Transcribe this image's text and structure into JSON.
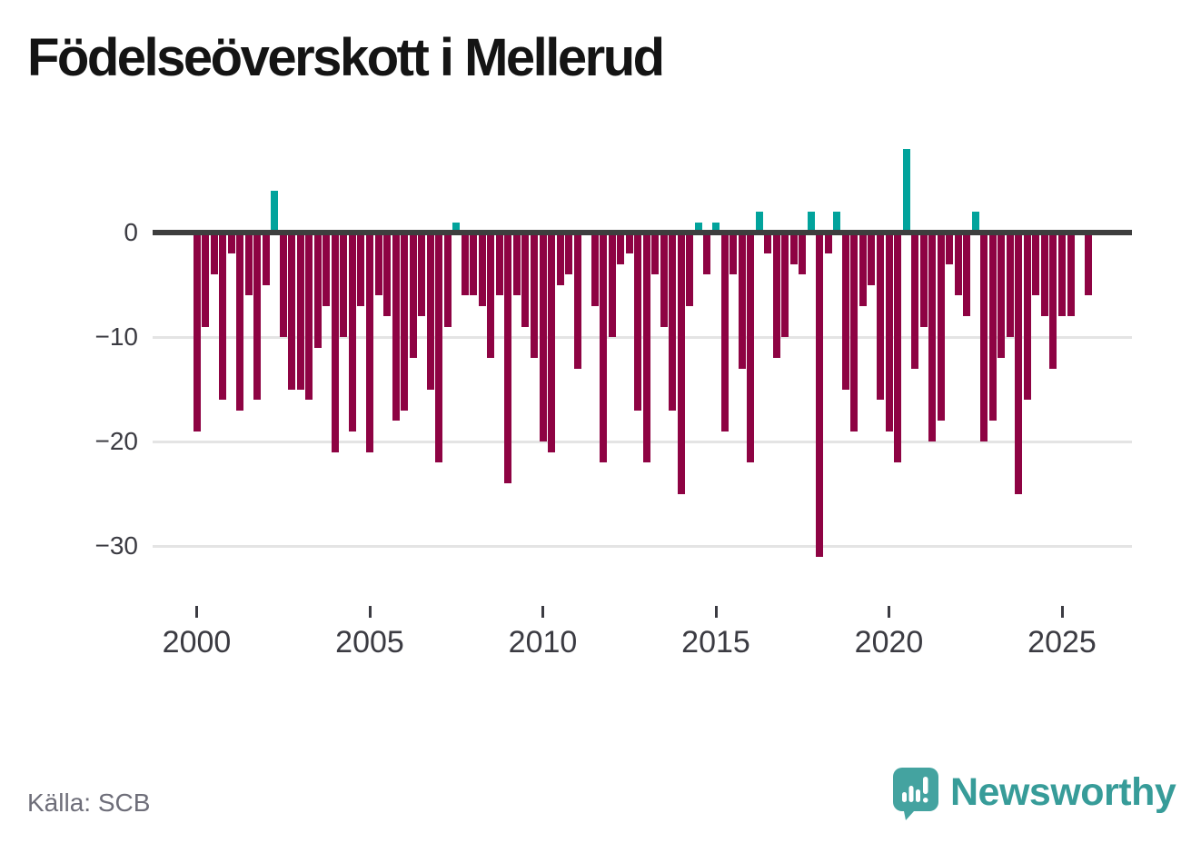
{
  "title": "Födelseöverskott i Mellerud",
  "source": "Källa: SCB",
  "brand": {
    "name": "Newsworthy"
  },
  "colors": {
    "title": "#141414",
    "axis_line": "#3e3e3e",
    "gridline": "#e4e4e4",
    "tick_label": "#3b3b42",
    "source_text": "#6e6e79",
    "brand_teal": "#379c99"
  },
  "chart_data": {
    "type": "bar",
    "title": "Födelseöverskott i Mellerud",
    "frequency": "quarterly",
    "start": "2000-Q1",
    "end": "2025-Q4",
    "positive_color": "#02a39c",
    "negative_color": "#8e0343",
    "ylim": [
      -33,
      9
    ],
    "yticks": [
      0,
      -10,
      -20,
      -30
    ],
    "xticks": [
      2000,
      2005,
      2010,
      2015,
      2020,
      2025
    ],
    "grid": "horizontal",
    "legend": "none",
    "values": [
      -19,
      -9,
      -4,
      -16,
      -2,
      -17,
      -6,
      -16,
      -5,
      4,
      -10,
      -15,
      -15,
      -16,
      -11,
      -7,
      -21,
      -10,
      -19,
      -7,
      -21,
      -6,
      -8,
      -18,
      -17,
      -12,
      -8,
      -15,
      -22,
      -9,
      1,
      -6,
      -6,
      -7,
      -12,
      -6,
      -24,
      -6,
      -9,
      -12,
      -20,
      -21,
      -5,
      -4,
      -13,
      0,
      -7,
      -22,
      -10,
      -3,
      -2,
      -17,
      -22,
      -4,
      -9,
      -17,
      -25,
      -7,
      1,
      -4,
      1,
      -19,
      -4,
      -13,
      -22,
      2,
      -2,
      -12,
      -10,
      -3,
      -4,
      2,
      -31,
      -2,
      2,
      -15,
      -19,
      -7,
      -5,
      -16,
      -19,
      -22,
      8,
      -13,
      -9,
      -20,
      -18,
      -3,
      -6,
      -8,
      2,
      -20,
      -18,
      -12,
      -10,
      -25,
      -16,
      -6,
      -8,
      -13,
      -8,
      -8,
      0,
      -6
    ]
  }
}
